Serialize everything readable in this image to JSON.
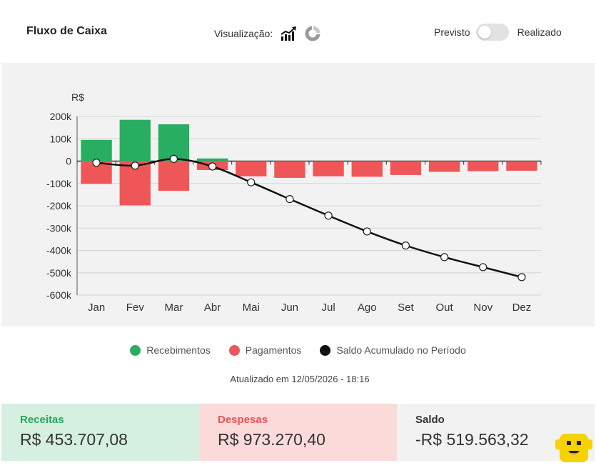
{
  "header": {
    "title": "Fluxo de Caixa",
    "viz_label": "Visualização:",
    "toggle_left": "Previsto",
    "toggle_right": "Realizado",
    "icons": [
      "bar-line-chart-icon",
      "donut-chart-icon"
    ]
  },
  "chart_data": {
    "type": "bar",
    "ylabel": "R$",
    "ylim": [
      -600000,
      200000
    ],
    "yticks": [
      200000,
      100000,
      0,
      -100000,
      -200000,
      -300000,
      -400000,
      -500000,
      -600000
    ],
    "ytick_labels": [
      "200k",
      "100k",
      "0",
      "-100k",
      "-200k",
      "-300k",
      "-400k",
      "-500k",
      "-600k"
    ],
    "categories": [
      "Jan",
      "Fev",
      "Mar",
      "Abr",
      "Mai",
      "Jun",
      "Jul",
      "Ago",
      "Set",
      "Out",
      "Nov",
      "Dez"
    ],
    "grid": true,
    "legend_position": "bottom",
    "series": [
      {
        "name": "Recebimentos",
        "type": "bar",
        "color": "#27ae60",
        "values": [
          95000,
          185000,
          165000,
          12000,
          0,
          0,
          0,
          0,
          0,
          0,
          0,
          0
        ]
      },
      {
        "name": "Pagamentos",
        "type": "bar",
        "color": "#ef5658",
        "values": [
          -102000,
          -198000,
          -133000,
          -40000,
          -68000,
          -75000,
          -68000,
          -70000,
          -62000,
          -48000,
          -45000,
          -43000
        ]
      },
      {
        "name": "Saldo Acumulado no Período",
        "type": "line",
        "color": "#111111",
        "values": [
          -7000,
          -20000,
          10000,
          -24000,
          -95000,
          -170000,
          -244000,
          -315000,
          -378000,
          -430000,
          -475000,
          -519563.32
        ]
      }
    ]
  },
  "updated": "Atualizado em 12/05/2026 - 18:16",
  "summary": {
    "receitas_label": "Receitas",
    "receitas_value": "R$ 453.707,08",
    "despesas_label": "Despesas",
    "despesas_value": "R$ 973.270,40",
    "saldo_label": "Saldo",
    "saldo_value": "-R$ 519.563,32"
  },
  "colors": {
    "green": "#27ae60",
    "red": "#ef5658",
    "line": "#111111",
    "mascot": "#f5d200"
  }
}
